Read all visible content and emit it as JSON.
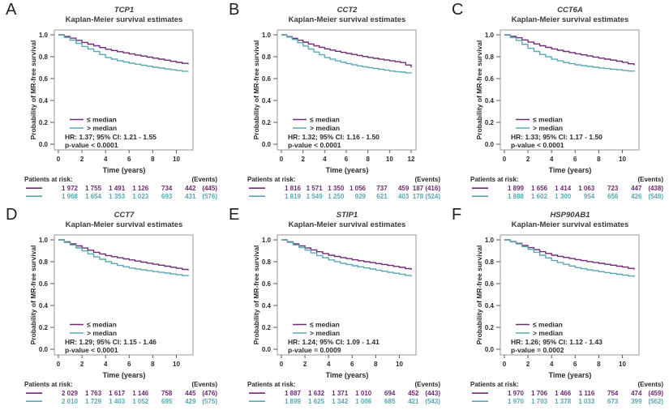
{
  "colors": {
    "le_median": "#6E2B72",
    "gt_median": "#5AA7B2",
    "axis": "#9a9a9a",
    "tick": "#5a5a5a",
    "text": "#2b2b2b",
    "title": "#3a3a3a"
  },
  "figure": {
    "subtitle": "Kaplan-Meier survival estimates",
    "xlabel": "Time (years)",
    "ylabel": "Probability of MR-free survival",
    "risk_label": "Patients at risk:",
    "events_header": "(Events)",
    "legend": [
      "≤ median",
      "> median"
    ]
  },
  "chart_data": [
    {
      "panel": "A",
      "gene": "TCP1",
      "type": "line",
      "title": "Kaplan-Meier survival estimates",
      "xlabel": "Time (years)",
      "ylabel": "Probability of MR-free survival",
      "x_ticks": [
        0,
        2,
        4,
        6,
        8,
        10
      ],
      "y_ticks": [
        "0.0",
        "0.2",
        "0.4",
        "0.6",
        "0.8",
        "1.0"
      ],
      "xlim": [
        0,
        11
      ],
      "ylim": [
        0,
        1
      ],
      "grid": false,
      "legend_position": "lower-left",
      "legend": [
        "≤ median",
        "> median"
      ],
      "hr_text": "HR: 1.37; 95% CI: 1.21 - 1.55",
      "p_text": "p-value < 0.0001",
      "series": [
        {
          "name": "≤ median",
          "group": "le_median",
          "y_by_year": [
            1.0,
            0.97,
            0.93,
            0.9,
            0.868,
            0.846,
            0.825,
            0.806,
            0.787,
            0.768,
            0.748,
            0.731
          ]
        },
        {
          "name": "> median",
          "group": "gt_median",
          "y_by_year": [
            1.0,
            0.952,
            0.893,
            0.848,
            0.792,
            0.763,
            0.741,
            0.722,
            0.704,
            0.688,
            0.673,
            0.662
          ]
        }
      ],
      "risk_rows": [
        {
          "name": "≤ median",
          "group": "le_median",
          "values": [
            "1 972",
            "1 755",
            "1 491",
            "1 126",
            "734",
            "442"
          ],
          "events": "(445)"
        },
        {
          "name": "> median",
          "group": "gt_median",
          "values": [
            "1 968",
            "1 654",
            "1 353",
            "1 023",
            "693",
            "431"
          ],
          "events": "(576)"
        }
      ]
    },
    {
      "panel": "B",
      "gene": "CCT2",
      "type": "line",
      "title": "Kaplan-Meier survival estimates",
      "xlabel": "Time (years)",
      "ylabel": "Probability of MR-free survival",
      "x_ticks": [
        0,
        2,
        4,
        6,
        8,
        10,
        12
      ],
      "y_ticks": [
        "0.0",
        "0.2",
        "0.4",
        "0.6",
        "0.8",
        "1.0"
      ],
      "xlim": [
        0,
        12
      ],
      "ylim": [
        0,
        1
      ],
      "grid": false,
      "legend_position": "lower-left",
      "legend": [
        "≤ median",
        "> median"
      ],
      "hr_text": "HR: 1.32; 95% CI: 1.16 - 1.50",
      "p_text": "p-value < 0.0001",
      "series": [
        {
          "name": "≤ median",
          "group": "le_median",
          "y_by_year": [
            1.0,
            0.968,
            0.933,
            0.9,
            0.872,
            0.85,
            0.83,
            0.812,
            0.793,
            0.777,
            0.762,
            0.747,
            0.702
          ]
        },
        {
          "name": "> median",
          "group": "gt_median",
          "y_by_year": [
            1.0,
            0.958,
            0.898,
            0.843,
            0.792,
            0.762,
            0.737,
            0.716,
            0.7,
            0.685,
            0.669,
            0.659,
            0.646
          ]
        }
      ],
      "risk_rows": [
        {
          "name": "≤ median",
          "group": "le_median",
          "values": [
            "1 816",
            "1 571",
            "1 350",
            "1 056",
            "737",
            "459"
          ],
          "events": "187 (416)"
        },
        {
          "name": "> median",
          "group": "gt_median",
          "values": [
            "1 819",
            "1 549",
            "1 250",
            "929",
            "621",
            "403"
          ],
          "events": "178 (524)"
        }
      ]
    },
    {
      "panel": "C",
      "gene": "CCT6A",
      "type": "line",
      "title": "Kaplan-Meier survival estimates",
      "xlabel": "Time (years)",
      "ylabel": "Probability of MR-free survival",
      "x_ticks": [
        0,
        2,
        4,
        6,
        8,
        10
      ],
      "y_ticks": [
        "0.0",
        "0.2",
        "0.4",
        "0.6",
        "0.8",
        "1.0"
      ],
      "xlim": [
        0,
        11
      ],
      "ylim": [
        0,
        1
      ],
      "grid": false,
      "legend_position": "lower-left",
      "legend": [
        "≤ median",
        "> median"
      ],
      "hr_text": "HR: 1.33; 95% CI: 1.17 - 1.50",
      "p_text": "p-value < 0.0001",
      "series": [
        {
          "name": "≤ median",
          "group": "le_median",
          "y_by_year": [
            1.0,
            0.973,
            0.934,
            0.9,
            0.871,
            0.848,
            0.827,
            0.807,
            0.787,
            0.769,
            0.749,
            0.722
          ]
        },
        {
          "name": "> median",
          "group": "gt_median",
          "y_by_year": [
            1.0,
            0.949,
            0.876,
            0.821,
            0.777,
            0.747,
            0.726,
            0.711,
            0.697,
            0.686,
            0.675,
            0.663
          ]
        }
      ],
      "risk_rows": [
        {
          "name": "≤ median",
          "group": "le_median",
          "values": [
            "1 899",
            "1 656",
            "1 414",
            "1 063",
            "723",
            "447"
          ],
          "events": "(438)"
        },
        {
          "name": "> median",
          "group": "gt_median",
          "values": [
            "1 888",
            "1 602",
            "1 300",
            "954",
            "656",
            "426"
          ],
          "events": "(548)"
        }
      ]
    },
    {
      "panel": "D",
      "gene": "CCT7",
      "type": "line",
      "title": "Kaplan-Meier survival estimates",
      "xlabel": "Time (years)",
      "ylabel": "Probability of MR-free survival",
      "x_ticks": [
        0,
        2,
        4,
        6,
        8,
        10
      ],
      "y_ticks": [
        "0.0",
        "0.2",
        "0.4",
        "0.6",
        "0.8",
        "1.0"
      ],
      "xlim": [
        0,
        11
      ],
      "ylim": [
        0,
        1
      ],
      "grid": false,
      "legend_position": "lower-left",
      "legend": [
        "≤ median",
        "> median"
      ],
      "hr_text": "HR: 1.29; 95% CI: 1.15 - 1.46",
      "p_text": "p-value < 0.0001",
      "series": [
        {
          "name": "≤ median",
          "group": "le_median",
          "y_by_year": [
            1.0,
            0.964,
            0.925,
            0.886,
            0.856,
            0.836,
            0.816,
            0.796,
            0.777,
            0.759,
            0.74,
            0.72
          ]
        },
        {
          "name": "> median",
          "group": "gt_median",
          "y_by_year": [
            1.0,
            0.953,
            0.899,
            0.845,
            0.8,
            0.766,
            0.742,
            0.726,
            0.71,
            0.696,
            0.681,
            0.666
          ]
        }
      ],
      "risk_rows": [
        {
          "name": "≤ median",
          "group": "le_median",
          "values": [
            "2 029",
            "1 763",
            "1 617",
            "1 146",
            "758",
            "445"
          ],
          "events": "(476)"
        },
        {
          "name": "> median",
          "group": "gt_median",
          "values": [
            "2 010",
            "1 729",
            "1 403",
            "1 052",
            "695",
            "429"
          ],
          "events": "(575)"
        }
      ]
    },
    {
      "panel": "E",
      "gene": "STIP1",
      "type": "line",
      "title": "Kaplan-Meier survival estimates",
      "xlabel": "Time (years)",
      "ylabel": "Probability of MR-free survival",
      "x_ticks": [
        0,
        2,
        4,
        6,
        8,
        10
      ],
      "y_ticks": [
        "0.0",
        "0.2",
        "0.4",
        "0.6",
        "0.8",
        "1.0"
      ],
      "xlim": [
        0,
        11
      ],
      "ylim": [
        0,
        1
      ],
      "grid": false,
      "legend_position": "lower-left",
      "legend": [
        "≤ median",
        "> median"
      ],
      "hr_text": "HR: 1.24; 95% CI: 1.09 - 1.41",
      "p_text": "p-value = 0.0009",
      "series": [
        {
          "name": "≤ median",
          "group": "le_median",
          "y_by_year": [
            1.0,
            0.964,
            0.926,
            0.891,
            0.859,
            0.838,
            0.818,
            0.8,
            0.783,
            0.766,
            0.748,
            0.726
          ]
        },
        {
          "name": "> median",
          "group": "gt_median",
          "y_by_year": [
            1.0,
            0.954,
            0.906,
            0.856,
            0.816,
            0.786,
            0.763,
            0.743,
            0.723,
            0.703,
            0.686,
            0.663
          ]
        }
      ],
      "risk_rows": [
        {
          "name": "≤ median",
          "group": "le_median",
          "values": [
            "1 887",
            "1 632",
            "1 371",
            "1 010",
            "694",
            "452"
          ],
          "events": "(443)"
        },
        {
          "name": "> median",
          "group": "gt_median",
          "values": [
            "1 899",
            "1 625",
            "1 342",
            "1 006",
            "685",
            "421"
          ],
          "events": "(543)"
        }
      ]
    },
    {
      "panel": "F",
      "gene": "HSP90AB1",
      "type": "line",
      "title": "Kaplan-Meier survival estimates",
      "xlabel": "Time (years)",
      "ylabel": "Probability of MR-free survival",
      "x_ticks": [
        0,
        2,
        4,
        6,
        8,
        10
      ],
      "y_ticks": [
        "0.0",
        "0.2",
        "0.4",
        "0.6",
        "0.8",
        "1.0"
      ],
      "xlim": [
        0,
        11
      ],
      "ylim": [
        0,
        1
      ],
      "grid": false,
      "legend_position": "lower-left",
      "legend": [
        "≤ median",
        "> median"
      ],
      "hr_text": "HR: 1.26; 95% CI: 1.12 - 1.43",
      "p_text": "p-value = 0.0002",
      "series": [
        {
          "name": "≤ median",
          "group": "le_median",
          "y_by_year": [
            1.0,
            0.968,
            0.929,
            0.892,
            0.859,
            0.839,
            0.819,
            0.801,
            0.785,
            0.768,
            0.751,
            0.728
          ]
        },
        {
          "name": "> median",
          "group": "gt_median",
          "y_by_year": [
            1.0,
            0.962,
            0.913,
            0.859,
            0.81,
            0.776,
            0.746,
            0.726,
            0.709,
            0.693,
            0.678,
            0.661
          ]
        }
      ],
      "risk_rows": [
        {
          "name": "≤ median",
          "group": "le_median",
          "values": [
            "1 970",
            "1 706",
            "1 466",
            "1 116",
            "754",
            "474"
          ],
          "events": "(459)"
        },
        {
          "name": "> median",
          "group": "gt_median",
          "values": [
            "1 970",
            "1 703",
            "1 378",
            "1 033",
            "673",
            "399"
          ],
          "events": "(562)"
        }
      ]
    }
  ]
}
